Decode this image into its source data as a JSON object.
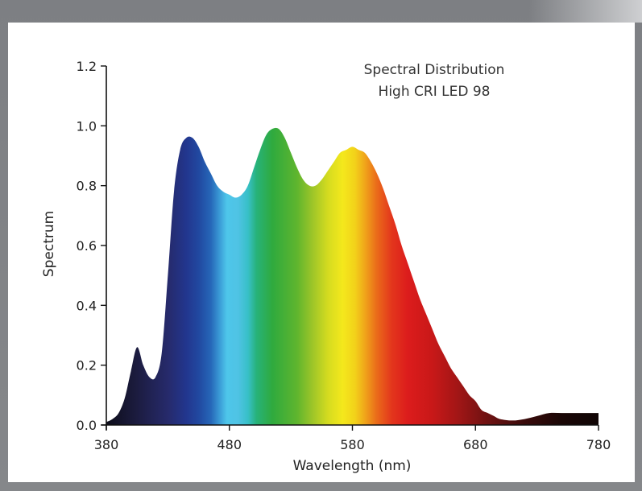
{
  "chart_data": {
    "type": "area",
    "title": "Spectral Distribution",
    "subtitle": "High CRI LED 98",
    "xlabel": "Wavelength (nm)",
    "ylabel": "Spectrum",
    "xlim": [
      380,
      780
    ],
    "ylim": [
      0.0,
      1.2
    ],
    "xticks": [
      "380",
      "480",
      "580",
      "680",
      "780"
    ],
    "yticks": [
      "0.0",
      "0.2",
      "0.4",
      "0.6",
      "0.8",
      "1.0",
      "1.2"
    ],
    "grid": false,
    "x": [
      380,
      385,
      390,
      395,
      400,
      405,
      410,
      415,
      420,
      425,
      430,
      435,
      440,
      445,
      450,
      455,
      460,
      465,
      470,
      475,
      480,
      485,
      490,
      495,
      500,
      505,
      510,
      515,
      520,
      525,
      530,
      535,
      540,
      545,
      550,
      555,
      560,
      565,
      570,
      575,
      580,
      585,
      590,
      595,
      600,
      605,
      610,
      615,
      620,
      625,
      630,
      635,
      640,
      645,
      650,
      655,
      660,
      665,
      670,
      675,
      680,
      685,
      690,
      695,
      700,
      710,
      720,
      730,
      740,
      750,
      760,
      770,
      780
    ],
    "y": [
      0.01,
      0.02,
      0.04,
      0.09,
      0.18,
      0.26,
      0.2,
      0.16,
      0.16,
      0.24,
      0.5,
      0.78,
      0.92,
      0.96,
      0.96,
      0.93,
      0.88,
      0.84,
      0.8,
      0.78,
      0.77,
      0.76,
      0.77,
      0.8,
      0.86,
      0.92,
      0.97,
      0.99,
      0.99,
      0.96,
      0.91,
      0.86,
      0.82,
      0.8,
      0.8,
      0.82,
      0.85,
      0.88,
      0.91,
      0.92,
      0.93,
      0.92,
      0.91,
      0.88,
      0.84,
      0.79,
      0.73,
      0.67,
      0.6,
      0.54,
      0.48,
      0.42,
      0.37,
      0.32,
      0.27,
      0.23,
      0.19,
      0.16,
      0.13,
      0.1,
      0.08,
      0.05,
      0.04,
      0.03,
      0.02,
      0.015,
      0.02,
      0.03,
      0.04,
      0.04,
      0.04,
      0.04,
      0.04
    ]
  }
}
